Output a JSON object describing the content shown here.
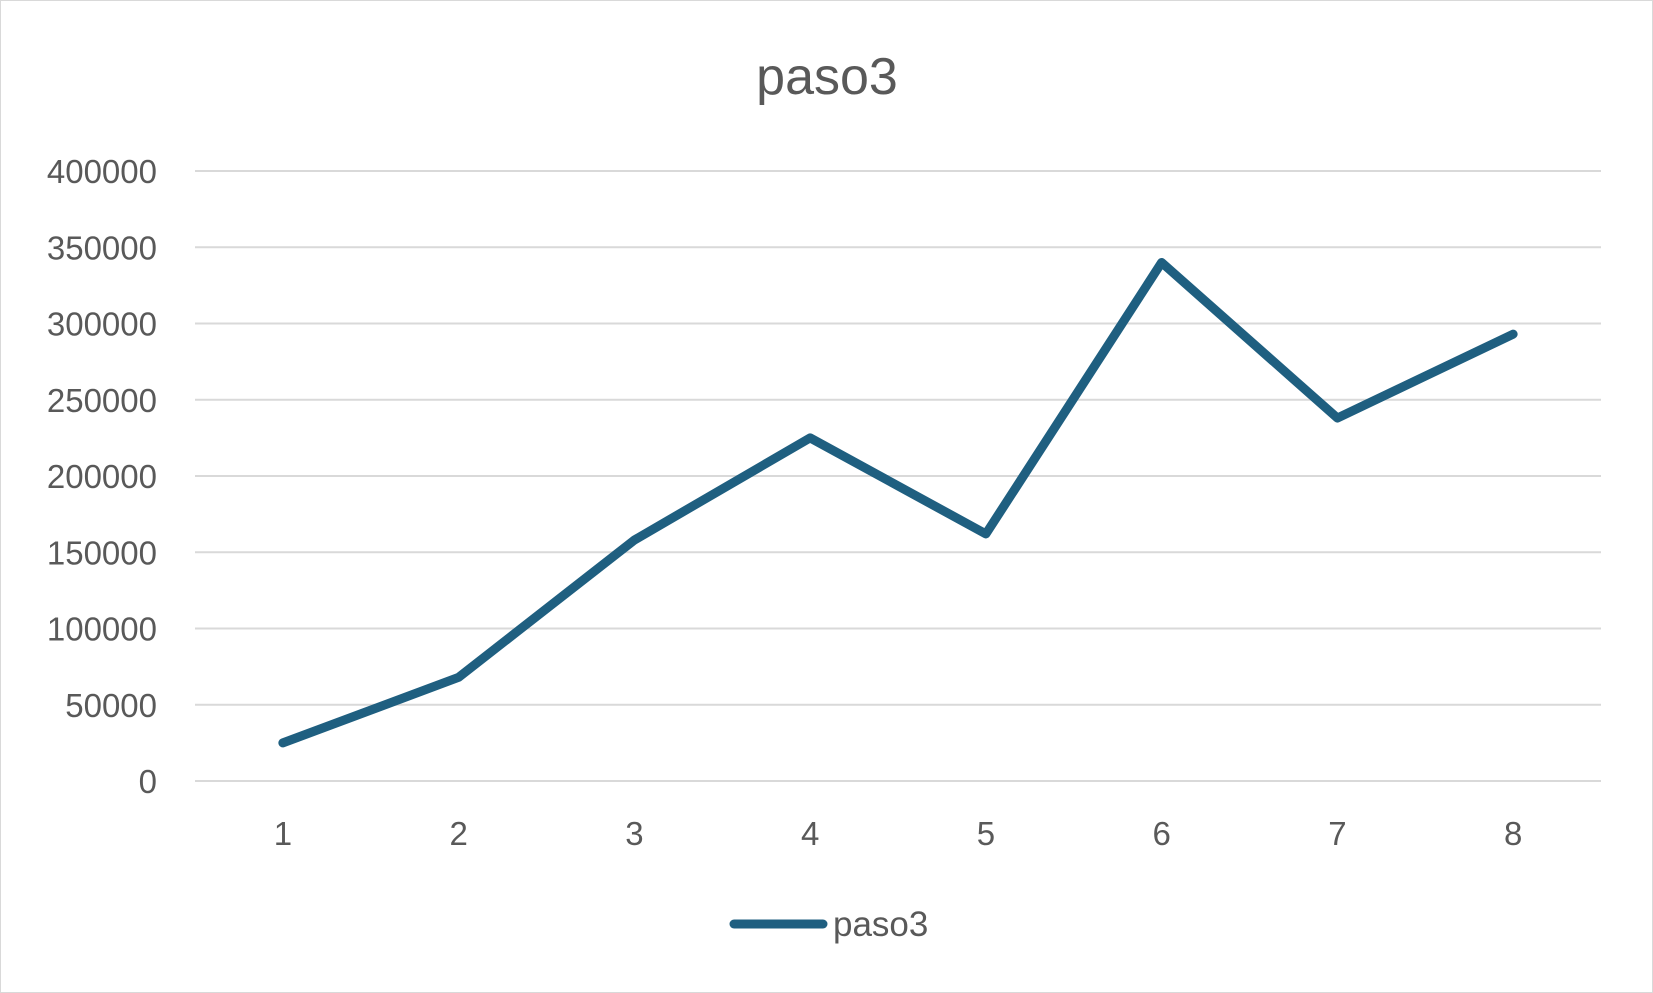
{
  "chart_data": {
    "type": "line",
    "title": "paso3",
    "xlabel": "",
    "ylabel": "",
    "categories": [
      "1",
      "2",
      "3",
      "4",
      "5",
      "6",
      "7",
      "8"
    ],
    "series": [
      {
        "name": "paso3",
        "values": [
          25000,
          68000,
          158000,
          225000,
          162000,
          340000,
          238000,
          293000
        ],
        "color": "#1f5f80"
      }
    ],
    "ylim": [
      0,
      400000
    ],
    "yticks": [
      "0",
      "50000",
      "100000",
      "150000",
      "200000",
      "250000",
      "300000",
      "350000",
      "400000"
    ],
    "grid": true,
    "legend_position": "bottom"
  }
}
